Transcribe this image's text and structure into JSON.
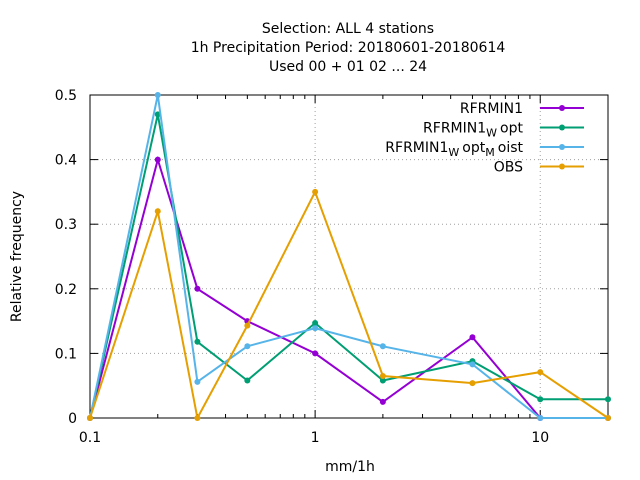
{
  "chart_data": {
    "type": "line",
    "title_lines": [
      "Selection: ALL      4 stations",
      "1h Precipitation  Period: 20180601-20180614",
      "Used  00 + 01 02 ... 24"
    ],
    "xlabel": "mm/1h",
    "ylabel": "Relative frequency",
    "xscale": "log",
    "xlim": [
      0.1,
      20
    ],
    "ylim": [
      0,
      0.5
    ],
    "xticks": [
      {
        "value": 0.1,
        "label": "0.1"
      },
      {
        "value": 1,
        "label": "1"
      },
      {
        "value": 10,
        "label": "10"
      }
    ],
    "yticks": [
      {
        "value": 0,
        "label": "0"
      },
      {
        "value": 0.1,
        "label": "0.1"
      },
      {
        "value": 0.2,
        "label": "0.2"
      },
      {
        "value": 0.3,
        "label": "0.3"
      },
      {
        "value": 0.4,
        "label": "0.4"
      },
      {
        "value": 0.5,
        "label": "0.5"
      }
    ],
    "grid": true,
    "legend_position": "top-right",
    "x": [
      0.1,
      0.2,
      0.3,
      0.5,
      1,
      2,
      5,
      10,
      20
    ],
    "series": [
      {
        "name": "RFRMIN1",
        "legend_main": "RFRMIN1",
        "legend_sub": "",
        "legend_main2": "",
        "legend_sub2": "",
        "legend_tail": "",
        "color": "#9400d3",
        "values": [
          0,
          0.4,
          0.2,
          0.15,
          0.1,
          0.025,
          0.125,
          0,
          0
        ]
      },
      {
        "name": "RFRMIN1Wopt",
        "legend_main": "RFRMIN1",
        "legend_sub": "W",
        "legend_main2": "opt",
        "legend_sub2": "",
        "legend_tail": "",
        "color": "#009e73",
        "values": [
          0,
          0.47,
          0.118,
          0.058,
          0.147,
          0.058,
          0.088,
          0.029,
          0.029
        ]
      },
      {
        "name": "RFRMIN1WoptMoist",
        "legend_main": "RFRMIN1",
        "legend_sub": "W",
        "legend_main2": "opt",
        "legend_sub2": "M",
        "legend_tail": "oist",
        "color": "#56b4e9",
        "values": [
          0,
          0.5,
          0.056,
          0.111,
          0.139,
          0.111,
          0.083,
          0,
          0
        ]
      },
      {
        "name": "OBS",
        "legend_main": "OBS",
        "legend_sub": "",
        "legend_main2": "",
        "legend_sub2": "",
        "legend_tail": "",
        "color": "#e69f00",
        "values": [
          0,
          0.32,
          0,
          0.143,
          0.35,
          0.065,
          0.054,
          0.071,
          0
        ]
      }
    ]
  }
}
